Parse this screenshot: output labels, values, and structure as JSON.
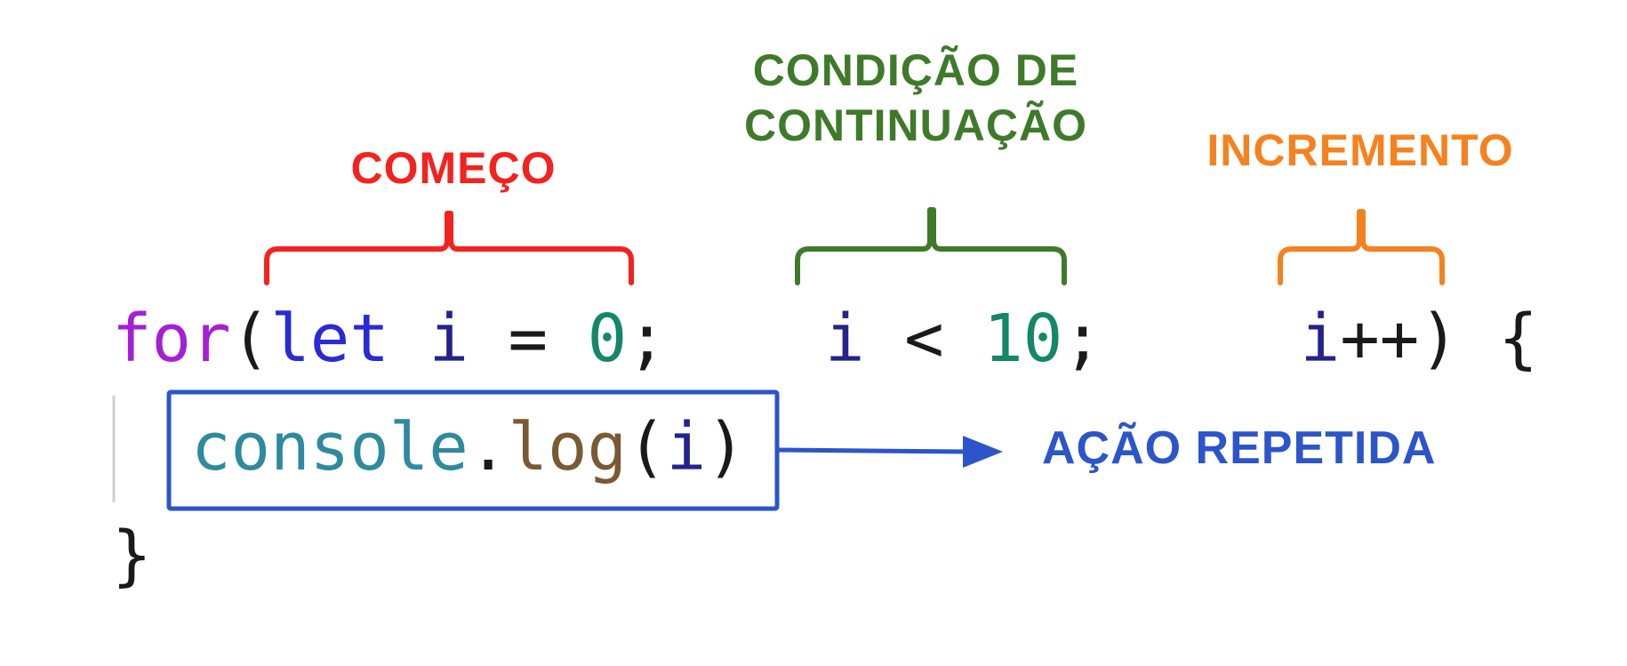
{
  "labels": {
    "start": "COMEÇO",
    "condition_line1": "CONDIÇÃO DE",
    "condition_line2": "CONTINUAÇÃO",
    "increment": "INCREMENTO",
    "action": "AÇÃO REPETIDA"
  },
  "code": {
    "line1": [
      {
        "text": "for",
        "role": "keyword"
      },
      {
        "text": "(",
        "role": "punct"
      },
      {
        "text": "let",
        "role": "declaration"
      },
      {
        "text": " ",
        "role": "space"
      },
      {
        "text": "i",
        "role": "variable"
      },
      {
        "text": " = ",
        "role": "operator"
      },
      {
        "text": "0",
        "role": "number"
      },
      {
        "text": ";",
        "role": "punct"
      },
      {
        "text": "    ",
        "role": "space"
      },
      {
        "text": "i",
        "role": "variable"
      },
      {
        "text": " < ",
        "role": "operator"
      },
      {
        "text": "10",
        "role": "number"
      },
      {
        "text": ";",
        "role": "punct"
      },
      {
        "text": "     ",
        "role": "space"
      },
      {
        "text": "i",
        "role": "variable"
      },
      {
        "text": "++) {",
        "role": "punct"
      }
    ],
    "line2": [
      {
        "text": "console",
        "role": "object"
      },
      {
        "text": ".",
        "role": "punct"
      },
      {
        "text": "log",
        "role": "method"
      },
      {
        "text": "(",
        "role": "punct"
      },
      {
        "text": "i",
        "role": "variable"
      },
      {
        "text": ")",
        "role": "punct"
      }
    ],
    "line3": "}"
  },
  "colors": {
    "start": "#f2231f",
    "condition": "#3e7a2a",
    "increment": "#f5821f",
    "action": "#2b55c9",
    "keyword": "#a41fd6",
    "declaration": "#2a2ad6",
    "variable": "#23238c",
    "number": "#14876a",
    "punct": "#1a1a1a",
    "operator": "#1a1a1a",
    "object": "#2e8a9e",
    "method": "#7a5a32",
    "guide": "#cfcfcf"
  }
}
